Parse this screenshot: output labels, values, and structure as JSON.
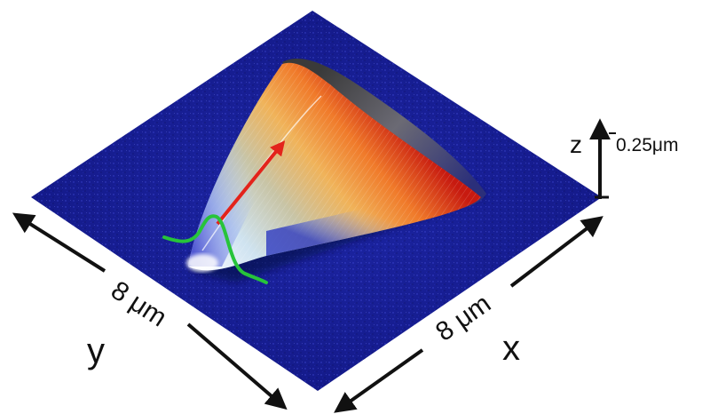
{
  "labels": {
    "x_axis_length": "8 μm",
    "y_axis_length": "8 μm",
    "x_axis": "x",
    "y_axis": "y",
    "z_axis": "z",
    "z_scale": "0.25μm"
  },
  "colors": {
    "substrate": "#141a8a",
    "arrow": "#e3231b",
    "profile": "#27c43a",
    "axis": "#111111"
  }
}
